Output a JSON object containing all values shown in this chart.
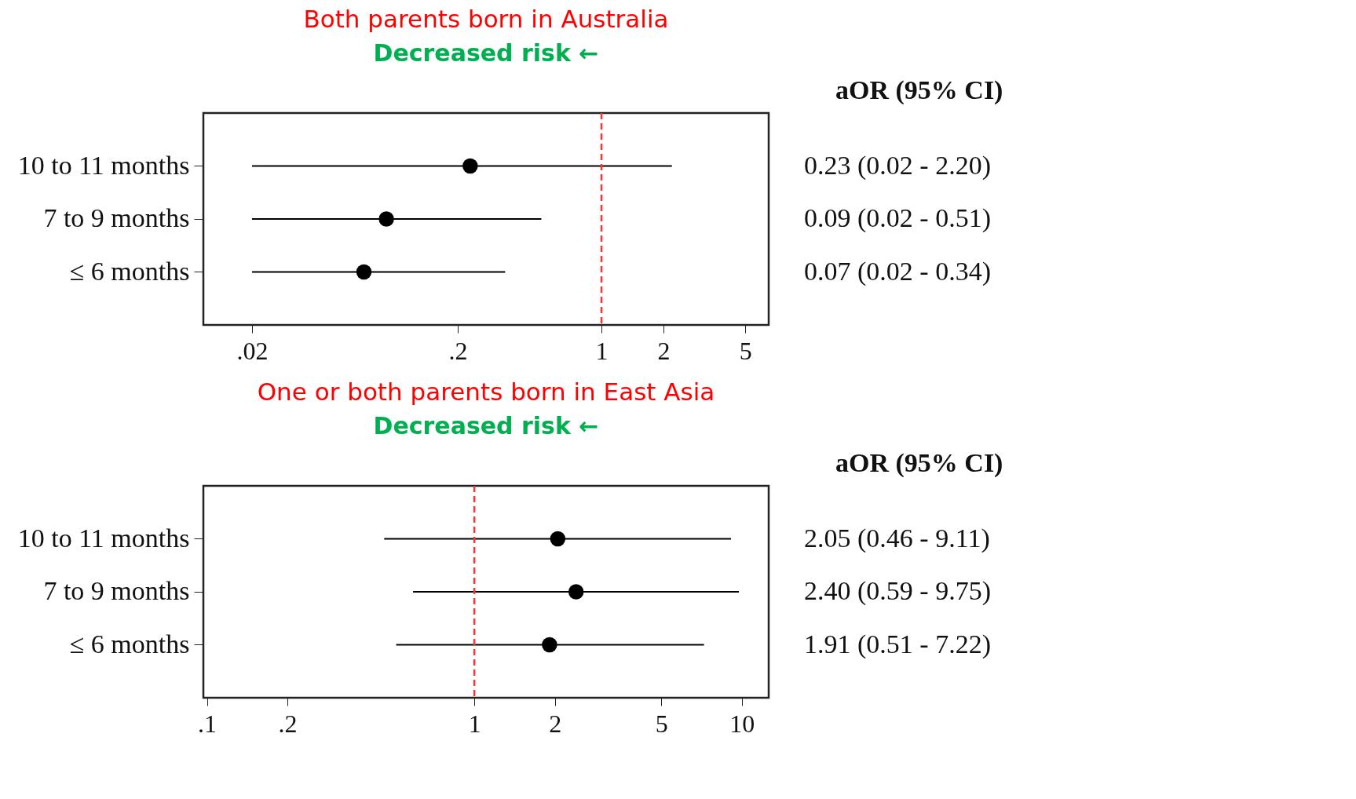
{
  "chart_data": [
    {
      "type": "scatter",
      "orientation": "horizontal",
      "title": "Both parents born in Australia",
      "subtitle": "Decreased risk ←",
      "annotations": [
        "aOR (95% CI)"
      ],
      "categories": [
        "10 to 11 months",
        "7 to 9 months",
        "≤ 6 months"
      ],
      "series": [
        {
          "color": "#000000",
          "values": [
            0.23,
            0.09,
            0.07
          ],
          "errors": [
            [
              0.02,
              2.2
            ],
            [
              0.02,
              0.51
            ],
            [
              0.02,
              0.34
            ]
          ],
          "value_labels": [
            "0.23 (0.02 - 2.20)",
            "0.09 (0.02 - 0.51)",
            "0.07 (0.02 - 0.34)"
          ]
        }
      ],
      "xlim": [
        0.0116,
        6.5
      ],
      "xticks": [
        {
          "value": 0.02,
          "label": ".02"
        },
        {
          "value": 0.2,
          "label": ".2"
        },
        1,
        2,
        5
      ],
      "log": "x",
      "grid": false,
      "marker": "circle",
      "ref_lines": [
        {
          "axis": "x",
          "value": 1,
          "color": "#ff3333",
          "line_style": "dashed"
        }
      ]
    },
    {
      "type": "scatter",
      "orientation": "horizontal",
      "title": "One or both parents born in East Asia",
      "subtitle": "Decreased risk ←",
      "annotations": [
        "aOR (95% CI)"
      ],
      "categories": [
        "10 to 11 months",
        "7 to 9 months",
        "≤ 6 months"
      ],
      "series": [
        {
          "color": "#000000",
          "values": [
            2.05,
            2.4,
            1.91
          ],
          "errors": [
            [
              0.46,
              9.11
            ],
            [
              0.59,
              9.75
            ],
            [
              0.51,
              7.22
            ]
          ],
          "value_labels": [
            "2.05 (0.46 - 9.11)",
            "2.40 (0.59 - 9.75)",
            "1.91 (0.51 - 7.22)"
          ]
        }
      ],
      "xlim": [
        0.097,
        12.6
      ],
      "xticks": [
        {
          "value": 0.1,
          "label": ".1"
        },
        {
          "value": 0.2,
          "label": ".2"
        },
        1,
        2,
        5,
        10
      ],
      "log": "x",
      "grid": false,
      "marker": "circle",
      "ref_lines": [
        {
          "axis": "x",
          "value": 1,
          "color": "#ff3333",
          "line_style": "dashed"
        }
      ]
    }
  ]
}
